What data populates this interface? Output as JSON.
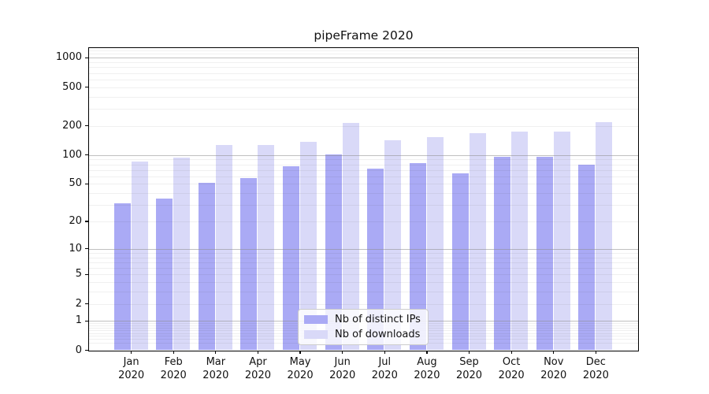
{
  "title": "pipeFrame 2020",
  "colors": {
    "ips_bar": "#aaaaf5",
    "downloads_bar": "#d9d9f8",
    "major_grid": "#8c8c8c",
    "minor_grid": "#ececec",
    "axis": "#000000",
    "legend_border": "#cccccc"
  },
  "legend": {
    "items": [
      {
        "label": "Nb of distinct IPs",
        "color_key": "ips_bar"
      },
      {
        "label": "Nb of downloads",
        "color_key": "downloads_bar"
      }
    ]
  },
  "chart_data": {
    "type": "bar",
    "title": "pipeFrame 2020",
    "categories": [
      "Jan 2020",
      "Feb 2020",
      "Mar 2020",
      "Apr 2020",
      "May 2020",
      "Jun 2020",
      "Jul 2020",
      "Aug 2020",
      "Sep 2020",
      "Oct 2020",
      "Nov 2020",
      "Dec 2020"
    ],
    "series": [
      {
        "name": "Nb of distinct IPs",
        "color": "#aaaaf5",
        "values": [
          31,
          35,
          51,
          57,
          76,
          101,
          72,
          83,
          64,
          96,
          95,
          79
        ]
      },
      {
        "name": "Nb of downloads",
        "color": "#d9d9f8",
        "values": [
          85,
          94,
          127,
          126,
          138,
          213,
          143,
          154,
          168,
          174,
          174,
          218
        ]
      }
    ],
    "xlabel": "",
    "ylabel": "",
    "yscale": "symlog (position proportional to ln(1+v))",
    "yticks": [
      0,
      1,
      2,
      5,
      10,
      20,
      50,
      100,
      200,
      500,
      1000
    ],
    "ylim": [
      0,
      1320
    ],
    "grid": true,
    "legend_position": "lower center inside plot"
  }
}
